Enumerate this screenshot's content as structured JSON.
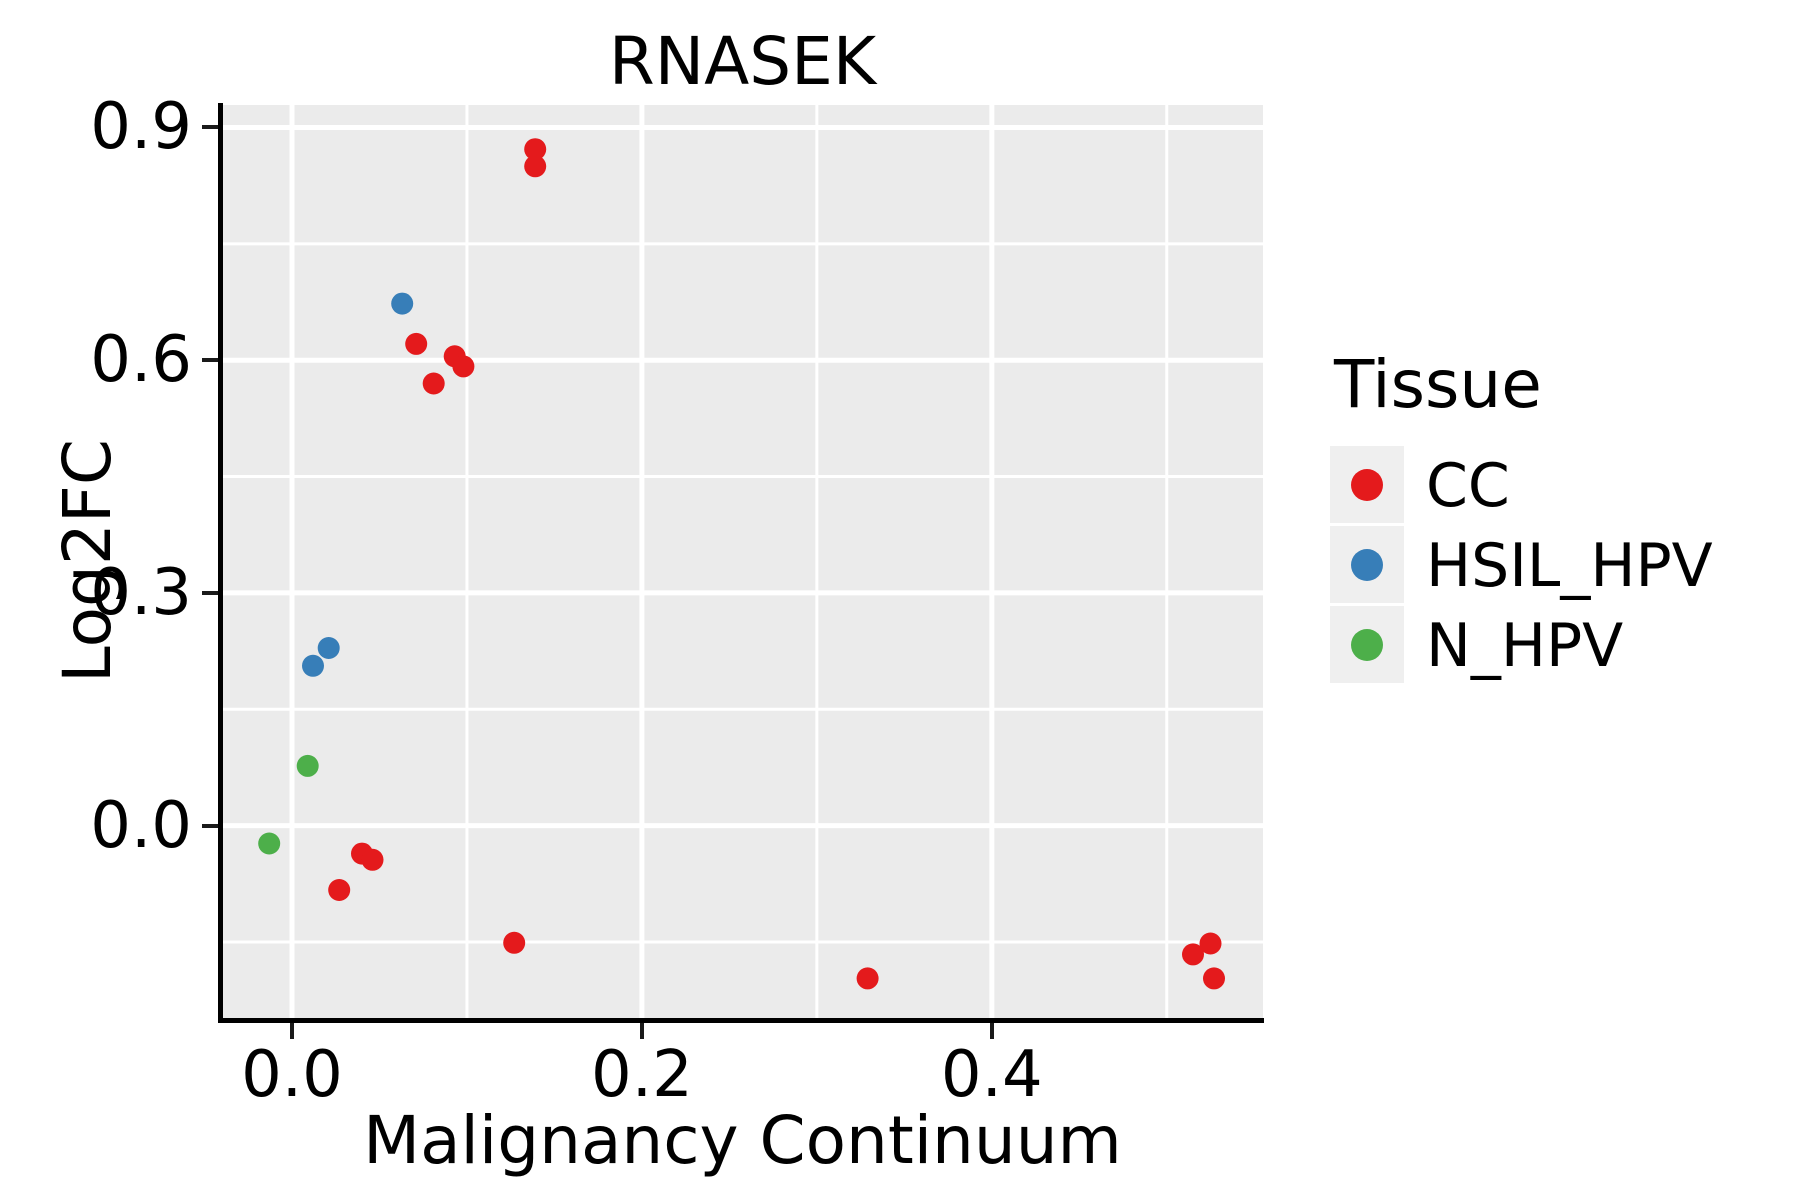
{
  "chart_data": {
    "type": "scatter",
    "title": "RNASEK",
    "xlabel": "Malignancy Continuum",
    "ylabel": "Log2FC",
    "xlim": [
      -0.04,
      0.555
    ],
    "ylim": [
      -0.248,
      0.929
    ],
    "grid": {
      "background": "#EBEBEB",
      "major_color": "#FFFFFF",
      "minor_color": "#FFFFFF",
      "grid_on": true
    },
    "x_major_ticks": [
      {
        "value": 0.0,
        "label": "0.0"
      },
      {
        "value": 0.2,
        "label": "0.2"
      },
      {
        "value": 0.4,
        "label": "0.4"
      }
    ],
    "x_minor_ticks": [
      0.1,
      0.3,
      0.5
    ],
    "y_major_ticks": [
      {
        "value": 0.0,
        "label": "0.0"
      },
      {
        "value": 0.3,
        "label": "0.3"
      },
      {
        "value": 0.6,
        "label": "0.6"
      },
      {
        "value": 0.9,
        "label": "0.9"
      }
    ],
    "y_minor_ticks": [
      -0.15,
      0.15,
      0.45,
      0.75
    ],
    "legend": {
      "title": "Tissue",
      "position": "right"
    },
    "point_radius_px": 11,
    "series": [
      {
        "name": "CC",
        "color": "#E41A1C",
        "points": [
          [
            0.139,
            0.872
          ],
          [
            0.139,
            0.85
          ],
          [
            0.071,
            0.621
          ],
          [
            0.093,
            0.605
          ],
          [
            0.098,
            0.592
          ],
          [
            0.081,
            0.57
          ],
          [
            0.04,
            -0.036
          ],
          [
            0.046,
            -0.044
          ],
          [
            0.027,
            -0.083
          ],
          [
            0.127,
            -0.151
          ],
          [
            0.329,
            -0.197
          ],
          [
            0.515,
            -0.166
          ],
          [
            0.525,
            -0.152
          ],
          [
            0.527,
            -0.197
          ]
        ]
      },
      {
        "name": "HSIL_HPV",
        "color": "#377EB8",
        "points": [
          [
            0.063,
            0.673
          ],
          [
            0.021,
            0.229
          ],
          [
            0.012,
            0.206
          ]
        ]
      },
      {
        "name": "N_HPV",
        "color": "#4DAF4A",
        "points": [
          [
            0.009,
            0.077
          ],
          [
            -0.013,
            -0.023
          ]
        ]
      }
    ]
  }
}
